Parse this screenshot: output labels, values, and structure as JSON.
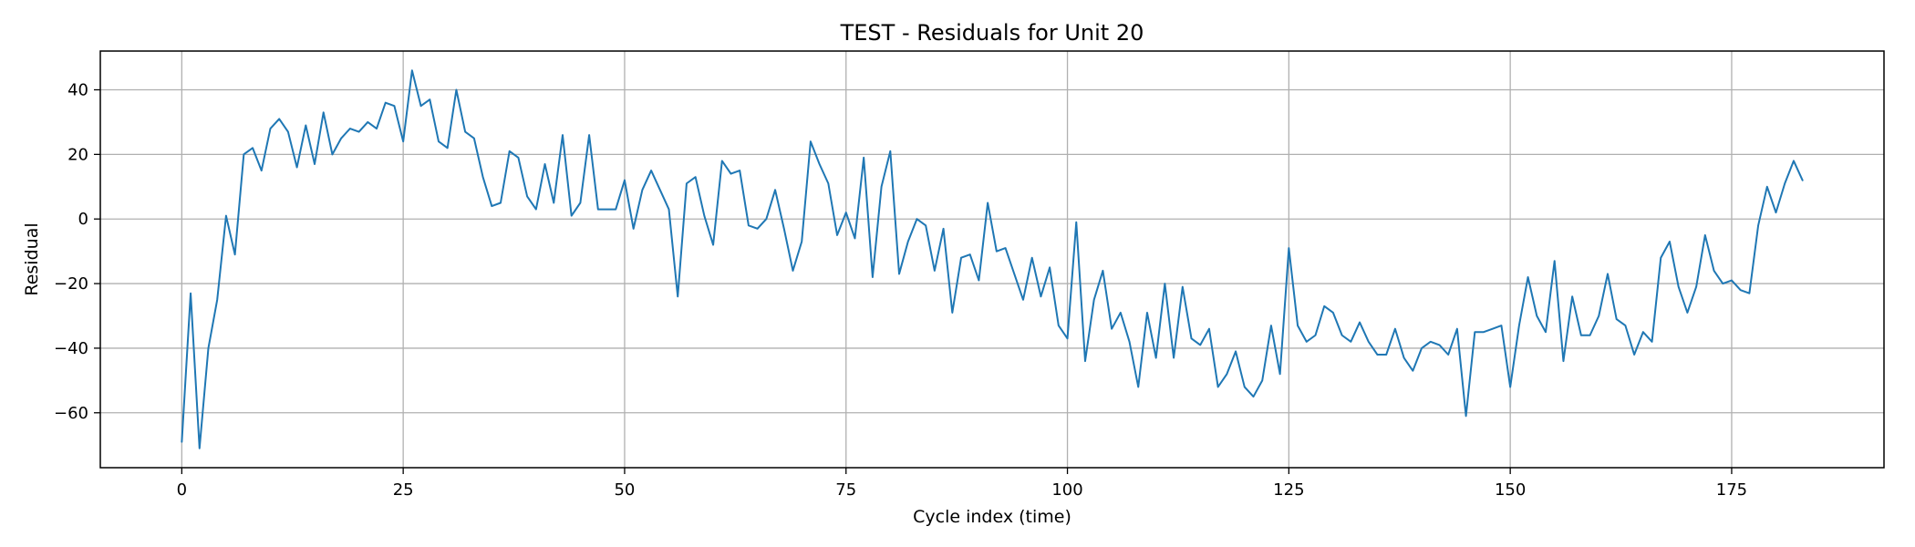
{
  "chart_data": {
    "type": "line",
    "title": "TEST - Residuals for Unit 20",
    "xlabel": "Cycle index (time)",
    "ylabel": "Residual",
    "xlim": [
      -9.2,
      192.2
    ],
    "ylim": [
      -77,
      52
    ],
    "xticks": [
      0,
      25,
      50,
      75,
      100,
      125,
      150,
      175
    ],
    "yticks": [
      -60,
      -40,
      -20,
      0,
      20,
      40
    ],
    "xtick_labels": [
      "0",
      "25",
      "50",
      "75",
      "100",
      "125",
      "150",
      "175"
    ],
    "ytick_labels": [
      "−60",
      "−40",
      "−20",
      "0",
      "20",
      "40"
    ],
    "grid": true,
    "series": [
      {
        "color": "#1f77b4",
        "x": [
          0,
          1,
          2,
          3,
          4,
          5,
          6,
          7,
          8,
          9,
          10,
          11,
          12,
          13,
          14,
          15,
          16,
          17,
          18,
          19,
          20,
          21,
          22,
          23,
          24,
          25,
          26,
          27,
          28,
          29,
          30,
          31,
          32,
          33,
          34,
          35,
          36,
          37,
          38,
          39,
          40,
          41,
          42,
          43,
          44,
          45,
          46,
          47,
          48,
          49,
          50,
          51,
          52,
          53,
          54,
          55,
          56,
          57,
          58,
          59,
          60,
          61,
          62,
          63,
          64,
          65,
          66,
          67,
          68,
          69,
          70,
          71,
          72,
          73,
          74,
          75,
          76,
          77,
          78,
          79,
          80,
          81,
          82,
          83,
          84,
          85,
          86,
          87,
          88,
          89,
          90,
          91,
          92,
          93,
          94,
          95,
          96,
          97,
          98,
          99,
          100,
          101,
          102,
          103,
          104,
          105,
          106,
          107,
          108,
          109,
          110,
          111,
          112,
          113,
          114,
          115,
          116,
          117,
          118,
          119,
          120,
          121,
          122,
          123,
          124,
          125,
          126,
          127,
          128,
          129,
          130,
          131,
          132,
          133,
          134,
          135,
          136,
          137,
          138,
          139,
          140,
          141,
          142,
          143,
          144,
          145,
          146,
          147,
          148,
          149,
          150,
          151,
          152,
          153,
          154,
          155,
          156,
          157,
          158,
          159,
          160,
          161,
          162,
          163,
          164,
          165,
          166,
          167,
          168,
          169,
          170,
          171,
          172,
          173,
          174,
          175,
          176,
          177,
          178,
          179,
          180,
          181,
          182,
          183
        ],
        "y": [
          -69,
          -23,
          -71,
          -40,
          -25,
          1,
          -11,
          20,
          22,
          15,
          28,
          31,
          27,
          16,
          29,
          17,
          33,
          20,
          25,
          28,
          27,
          30,
          28,
          36,
          35,
          24,
          46,
          35,
          37,
          24,
          22,
          40,
          27,
          25,
          13,
          4,
          5,
          21,
          19,
          7,
          3,
          17,
          5,
          26,
          1,
          5,
          26,
          3,
          3,
          3,
          12,
          -3,
          9,
          15,
          9,
          3,
          -24,
          11,
          13,
          1,
          -8,
          18,
          14,
          15,
          -2,
          -3,
          0,
          9,
          -3,
          -16,
          -7,
          24,
          17,
          11,
          -5,
          2,
          -6,
          19,
          -18,
          10,
          21,
          -17,
          -7,
          0,
          -2,
          -16,
          -3,
          -29,
          -12,
          -11,
          -19,
          5,
          -10,
          -9,
          -17,
          -25,
          -12,
          -24,
          -15,
          -33,
          -37,
          -1,
          -44,
          -25,
          -16,
          -34,
          -29,
          -38,
          -52,
          -29,
          -43,
          -20,
          -43,
          -21,
          -37,
          -39,
          -34,
          -52,
          -48,
          -41,
          -52,
          -55,
          -50,
          -33,
          -48,
          -9,
          -33,
          -38,
          -36,
          -27,
          -29,
          -36,
          -38,
          -32,
          -38,
          -42,
          -42,
          -34,
          -43,
          -47,
          -40,
          -38,
          -39,
          -42,
          -34,
          -61,
          -35,
          -35,
          -34,
          -33,
          -52,
          -33,
          -18,
          -30,
          -35,
          -13,
          -44,
          -24,
          -36,
          -36,
          -30,
          -17,
          -31,
          -33,
          -42,
          -35,
          -38,
          -12,
          -7,
          -21,
          -29,
          -21,
          -5,
          -16,
          -20,
          -19,
          -22,
          -23,
          -2,
          10,
          2,
          11,
          18,
          12
        ]
      }
    ]
  }
}
